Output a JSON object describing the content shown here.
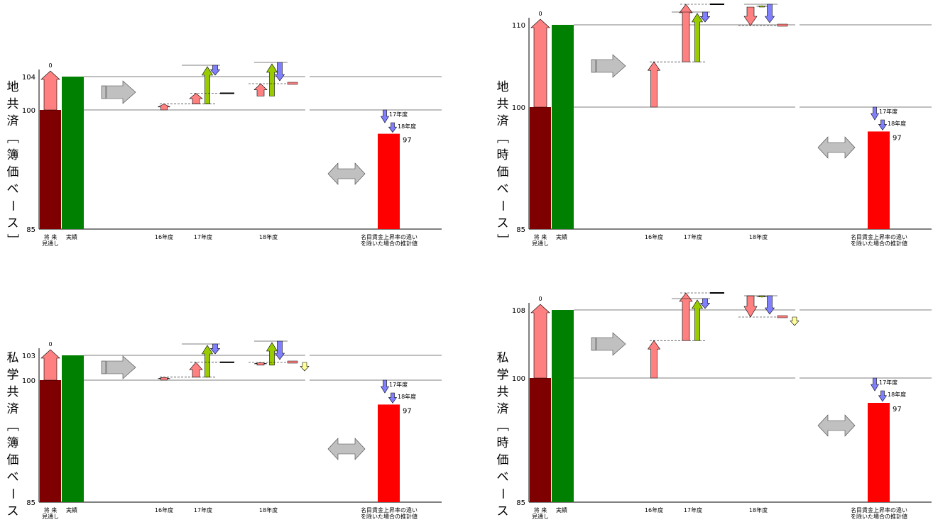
{
  "chart_data": [
    {
      "type": "bar",
      "title_vertical": "地共済［簿価ベース］",
      "yticks": [
        85,
        100,
        104
      ],
      "ylim": [
        85,
        104
      ],
      "categories": [
        "将来見通し",
        "実績",
        "16年度",
        "17年度",
        "18年度",
        "名目賃金上昇率の違いを除いた場合の推計値"
      ],
      "zero_label": "0",
      "result_value": 97,
      "result_label": "97",
      "annotation_labels": [
        "17年度",
        "18年度"
      ]
    },
    {
      "type": "bar",
      "title_vertical": "地共済［時価ベース］",
      "yticks": [
        85,
        100,
        110
      ],
      "ylim": [
        85,
        110
      ],
      "categories": [
        "将来見通し",
        "実績",
        "16年度",
        "17年度",
        "18年度",
        "名目賃金上昇率の違いを除いた場合の推計値"
      ],
      "zero_label": "0",
      "result_value": 97,
      "result_label": "97",
      "annotation_labels": [
        "17年度",
        "18年度"
      ]
    },
    {
      "type": "bar",
      "title_vertical": "私学共済［簿価ベース］",
      "yticks": [
        85,
        100,
        103
      ],
      "ylim": [
        85,
        103
      ],
      "categories": [
        "将来見通し",
        "実績",
        "16年度",
        "17年度",
        "18年度",
        "名目賃金上昇率の違いを除いた場合の推計値"
      ],
      "zero_label": "0",
      "result_value": 97,
      "result_label": "97",
      "annotation_labels": [
        "17年度",
        "18年度"
      ]
    },
    {
      "type": "bar",
      "title_vertical": "私学共済［時価ベース］",
      "yticks": [
        85,
        100,
        108
      ],
      "ylim": [
        85,
        108
      ],
      "categories": [
        "将来見通し",
        "実績",
        "16年度",
        "17年度",
        "18年度",
        "名目賃金上昇率の違いを除いた場合の推計値"
      ],
      "zero_label": "0",
      "result_value": 97,
      "result_label": "97",
      "annotation_labels": [
        "17年度",
        "18年度"
      ]
    }
  ],
  "colors": {
    "projection": "#7f0000",
    "actual": "#008000",
    "result": "#ff0000",
    "pink": "#ff8080",
    "green_arrow": "#99cc00",
    "blue_arrow": "#8080ff",
    "yellow_arrow": "#ffff99",
    "grey_arrow": "#c0c0c0"
  }
}
